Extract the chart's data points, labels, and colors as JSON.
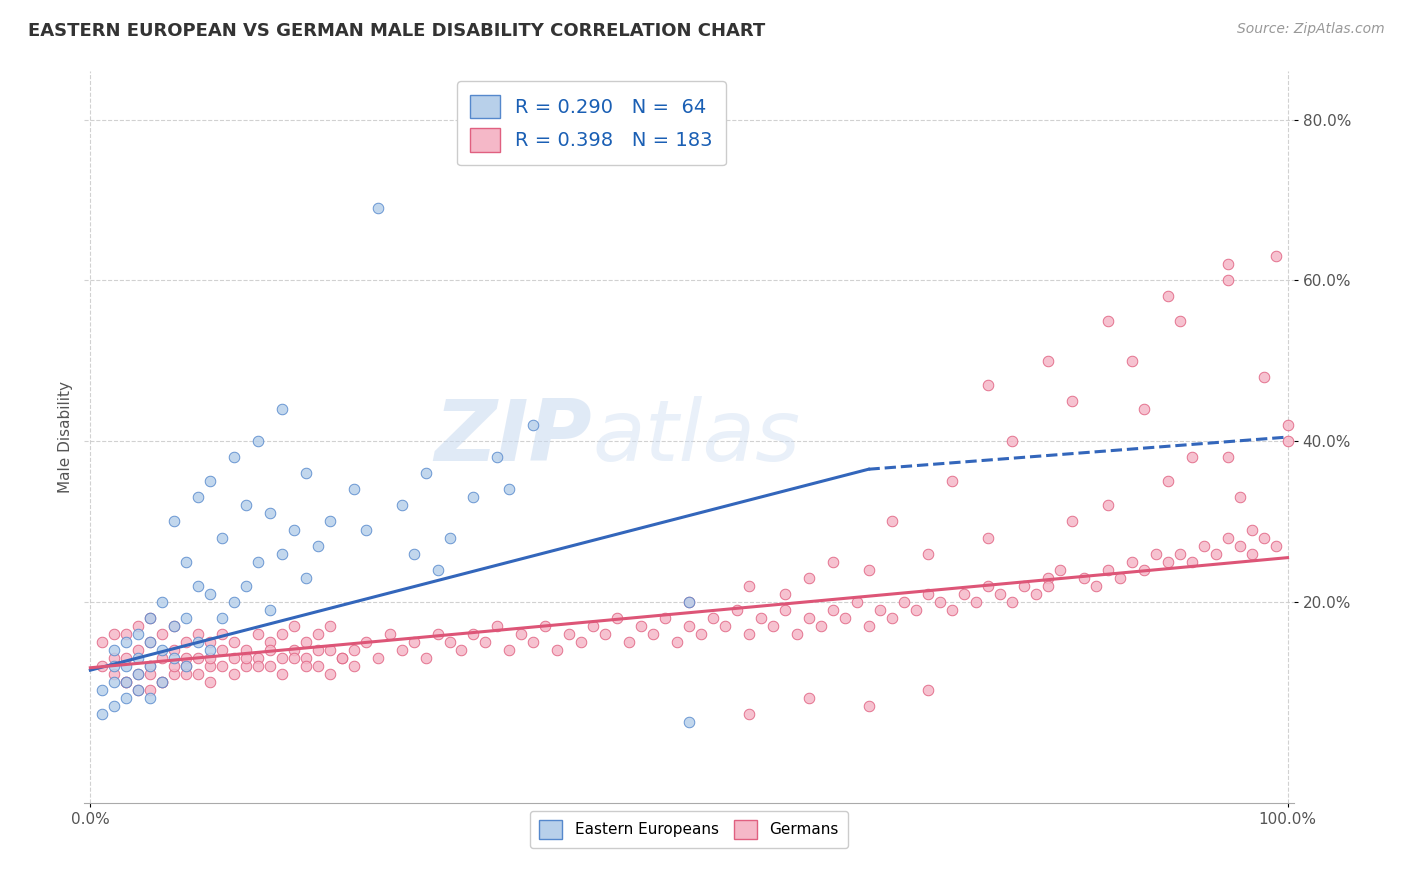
{
  "title": "EASTERN EUROPEAN VS GERMAN MALE DISABILITY CORRELATION CHART",
  "source": "Source: ZipAtlas.com",
  "ylabel": "Male Disability",
  "legend_labels": [
    "Eastern Europeans",
    "Germans"
  ],
  "legend_r": [
    0.29,
    0.398
  ],
  "legend_n": [
    64,
    183
  ],
  "eastern_color": "#b8d0ea",
  "german_color": "#f5b8c8",
  "eastern_edge_color": "#5588cc",
  "german_edge_color": "#e06080",
  "eastern_line_color": "#3366bb",
  "german_line_color": "#dd5577",
  "background_color": "#ffffff",
  "grid_color": "#cccccc",
  "ytick_labels": [
    "20.0%",
    "40.0%",
    "60.0%",
    "80.0%"
  ],
  "ytick_values": [
    0.2,
    0.4,
    0.6,
    0.8
  ],
  "xlim": [
    -0.005,
    1.005
  ],
  "ylim": [
    -0.05,
    0.86
  ],
  "watermark_zip": "ZIP",
  "watermark_atlas": "atlas",
  "e_line_start_x": 0.0,
  "e_line_start_y": 0.115,
  "e_line_end_solid_x": 0.65,
  "e_line_end_solid_y": 0.365,
  "e_line_end_dash_x": 1.0,
  "e_line_end_dash_y": 0.405,
  "g_line_start_x": 0.0,
  "g_line_start_y": 0.118,
  "g_line_end_x": 1.0,
  "g_line_end_y": 0.255,
  "eastern_scatter_x": [
    0.01,
    0.01,
    0.02,
    0.02,
    0.02,
    0.02,
    0.03,
    0.03,
    0.03,
    0.03,
    0.04,
    0.04,
    0.04,
    0.04,
    0.05,
    0.05,
    0.05,
    0.05,
    0.06,
    0.06,
    0.06,
    0.07,
    0.07,
    0.07,
    0.08,
    0.08,
    0.08,
    0.09,
    0.09,
    0.09,
    0.1,
    0.1,
    0.1,
    0.11,
    0.11,
    0.12,
    0.12,
    0.13,
    0.13,
    0.14,
    0.14,
    0.15,
    0.15,
    0.16,
    0.16,
    0.17,
    0.18,
    0.18,
    0.19,
    0.2,
    0.22,
    0.23,
    0.24,
    0.26,
    0.27,
    0.28,
    0.29,
    0.3,
    0.32,
    0.34,
    0.35,
    0.37,
    0.5,
    0.5
  ],
  "eastern_scatter_y": [
    0.06,
    0.09,
    0.07,
    0.1,
    0.12,
    0.14,
    0.08,
    0.1,
    0.12,
    0.15,
    0.09,
    0.11,
    0.13,
    0.16,
    0.08,
    0.12,
    0.15,
    0.18,
    0.1,
    0.14,
    0.2,
    0.13,
    0.17,
    0.3,
    0.12,
    0.18,
    0.25,
    0.15,
    0.22,
    0.33,
    0.14,
    0.21,
    0.35,
    0.18,
    0.28,
    0.2,
    0.38,
    0.22,
    0.32,
    0.25,
    0.4,
    0.19,
    0.31,
    0.26,
    0.44,
    0.29,
    0.23,
    0.36,
    0.27,
    0.3,
    0.34,
    0.29,
    0.69,
    0.32,
    0.26,
    0.36,
    0.24,
    0.28,
    0.33,
    0.38,
    0.34,
    0.42,
    0.2,
    0.05
  ],
  "german_scatter_x": [
    0.01,
    0.01,
    0.02,
    0.02,
    0.02,
    0.03,
    0.03,
    0.03,
    0.04,
    0.04,
    0.04,
    0.05,
    0.05,
    0.05,
    0.05,
    0.06,
    0.06,
    0.06,
    0.07,
    0.07,
    0.07,
    0.08,
    0.08,
    0.08,
    0.09,
    0.09,
    0.1,
    0.1,
    0.1,
    0.11,
    0.11,
    0.12,
    0.12,
    0.13,
    0.13,
    0.14,
    0.14,
    0.15,
    0.15,
    0.16,
    0.16,
    0.17,
    0.17,
    0.18,
    0.18,
    0.19,
    0.19,
    0.2,
    0.2,
    0.21,
    0.22,
    0.23,
    0.24,
    0.25,
    0.26,
    0.27,
    0.28,
    0.29,
    0.3,
    0.31,
    0.32,
    0.33,
    0.34,
    0.35,
    0.36,
    0.37,
    0.38,
    0.39,
    0.4,
    0.41,
    0.42,
    0.43,
    0.44,
    0.45,
    0.46,
    0.47,
    0.48,
    0.49,
    0.5,
    0.5,
    0.51,
    0.52,
    0.53,
    0.54,
    0.55,
    0.55,
    0.56,
    0.57,
    0.58,
    0.59,
    0.6,
    0.6,
    0.61,
    0.62,
    0.63,
    0.64,
    0.65,
    0.65,
    0.66,
    0.67,
    0.68,
    0.69,
    0.7,
    0.7,
    0.71,
    0.72,
    0.73,
    0.74,
    0.75,
    0.75,
    0.76,
    0.77,
    0.78,
    0.79,
    0.8,
    0.8,
    0.81,
    0.82,
    0.83,
    0.84,
    0.85,
    0.85,
    0.86,
    0.87,
    0.88,
    0.89,
    0.9,
    0.9,
    0.91,
    0.92,
    0.93,
    0.94,
    0.95,
    0.95,
    0.96,
    0.97,
    0.98,
    0.99,
    1.0,
    1.0,
    0.03,
    0.04,
    0.05,
    0.06,
    0.07,
    0.08,
    0.09,
    0.1,
    0.11,
    0.12,
    0.13,
    0.14,
    0.15,
    0.16,
    0.17,
    0.18,
    0.19,
    0.2,
    0.21,
    0.22,
    0.58,
    0.62,
    0.67,
    0.72,
    0.77,
    0.82,
    0.87,
    0.91,
    0.95,
    0.99,
    0.75,
    0.8,
    0.85,
    0.9,
    0.95,
    0.98,
    0.88,
    0.92,
    0.96,
    0.97,
    0.65,
    0.7,
    0.6,
    0.55
  ],
  "german_scatter_y": [
    0.12,
    0.15,
    0.11,
    0.13,
    0.16,
    0.1,
    0.13,
    0.16,
    0.11,
    0.14,
    0.17,
    0.09,
    0.12,
    0.15,
    0.18,
    0.1,
    0.13,
    0.16,
    0.11,
    0.14,
    0.17,
    0.12,
    0.15,
    0.13,
    0.11,
    0.16,
    0.12,
    0.15,
    0.13,
    0.14,
    0.16,
    0.13,
    0.15,
    0.12,
    0.14,
    0.13,
    0.16,
    0.12,
    0.15,
    0.13,
    0.16,
    0.14,
    0.17,
    0.13,
    0.15,
    0.12,
    0.16,
    0.14,
    0.17,
    0.13,
    0.14,
    0.15,
    0.13,
    0.16,
    0.14,
    0.15,
    0.13,
    0.16,
    0.15,
    0.14,
    0.16,
    0.15,
    0.17,
    0.14,
    0.16,
    0.15,
    0.17,
    0.14,
    0.16,
    0.15,
    0.17,
    0.16,
    0.18,
    0.15,
    0.17,
    0.16,
    0.18,
    0.15,
    0.17,
    0.2,
    0.16,
    0.18,
    0.17,
    0.19,
    0.16,
    0.22,
    0.18,
    0.17,
    0.19,
    0.16,
    0.18,
    0.23,
    0.17,
    0.19,
    0.18,
    0.2,
    0.17,
    0.24,
    0.19,
    0.18,
    0.2,
    0.19,
    0.21,
    0.26,
    0.2,
    0.19,
    0.21,
    0.2,
    0.22,
    0.28,
    0.21,
    0.2,
    0.22,
    0.21,
    0.23,
    0.22,
    0.24,
    0.3,
    0.23,
    0.22,
    0.24,
    0.32,
    0.23,
    0.25,
    0.24,
    0.26,
    0.25,
    0.35,
    0.26,
    0.25,
    0.27,
    0.26,
    0.28,
    0.38,
    0.27,
    0.26,
    0.28,
    0.27,
    0.4,
    0.42,
    0.1,
    0.09,
    0.11,
    0.1,
    0.12,
    0.11,
    0.13,
    0.1,
    0.12,
    0.11,
    0.13,
    0.12,
    0.14,
    0.11,
    0.13,
    0.12,
    0.14,
    0.11,
    0.13,
    0.12,
    0.21,
    0.25,
    0.3,
    0.35,
    0.4,
    0.45,
    0.5,
    0.55,
    0.6,
    0.63,
    0.47,
    0.5,
    0.55,
    0.58,
    0.62,
    0.48,
    0.44,
    0.38,
    0.33,
    0.29,
    0.07,
    0.09,
    0.08,
    0.06
  ]
}
